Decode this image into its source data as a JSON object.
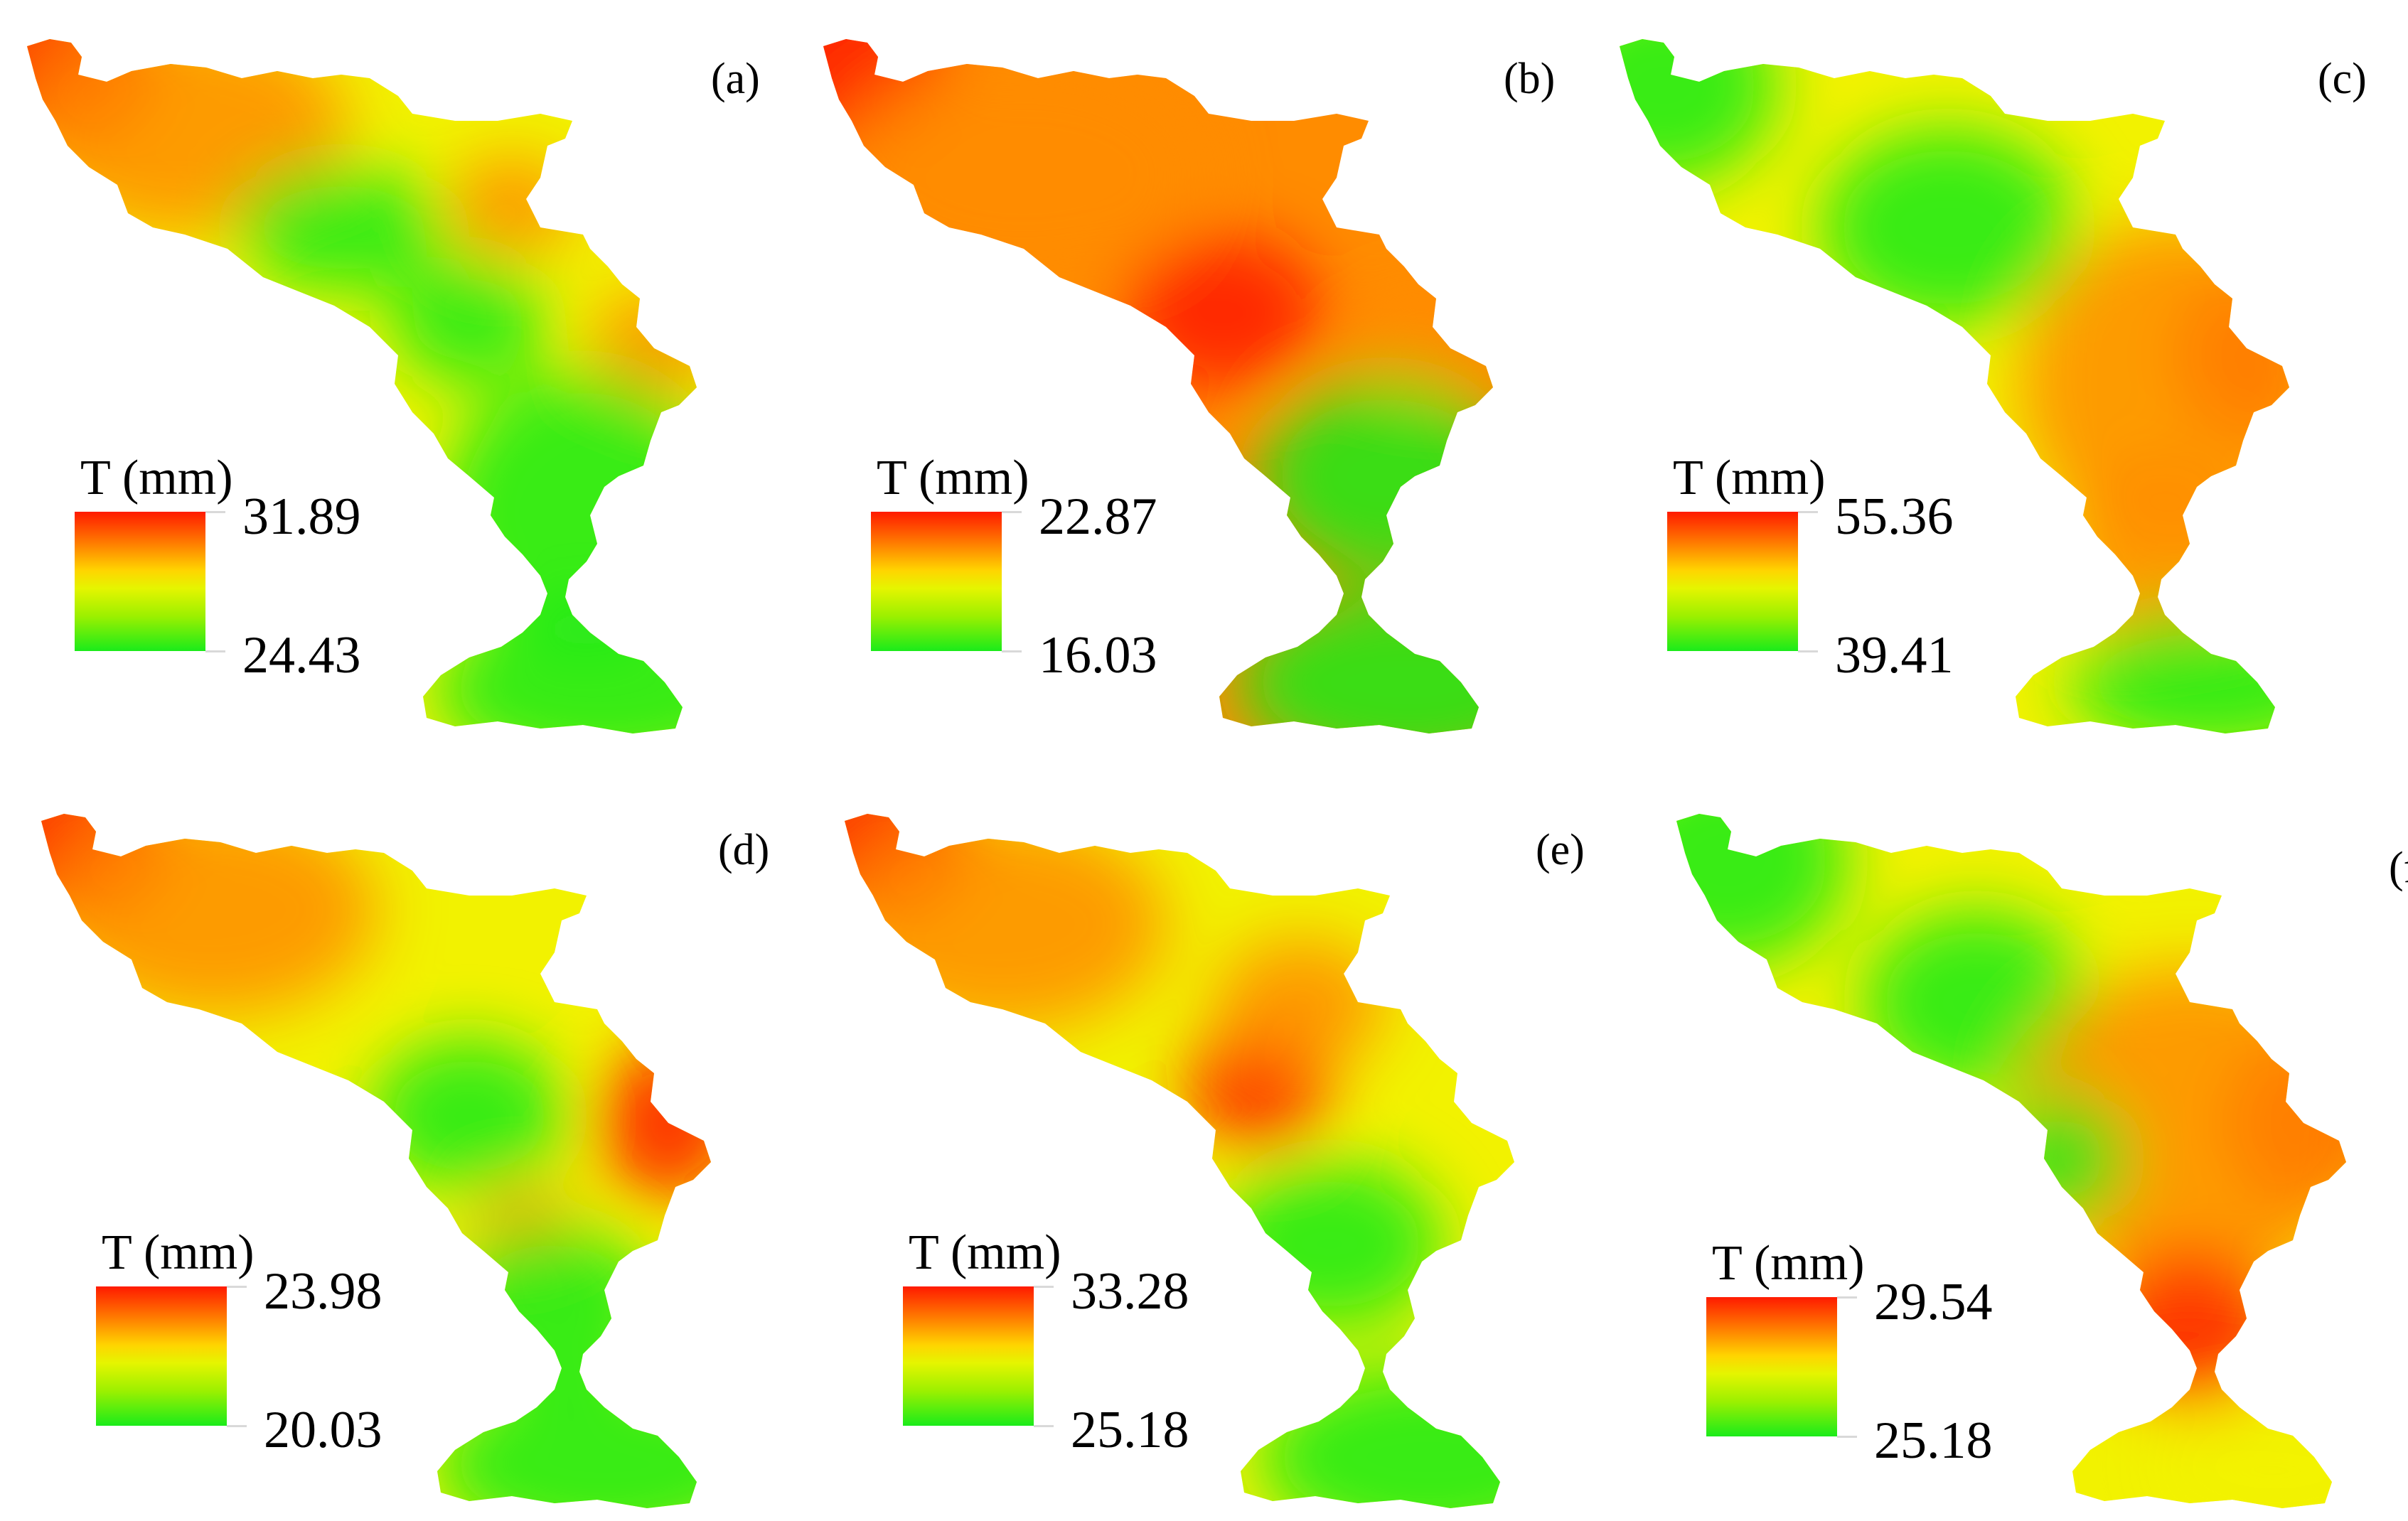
{
  "legend_title": "T (mm)",
  "colors": {
    "high": "#ff1a00",
    "mid_high": "#ff8c00",
    "mid": "#f2f200",
    "low": "#1aeb1a"
  },
  "panels": [
    {
      "label": "(a)",
      "max": "31.89",
      "min": "24.43"
    },
    {
      "label": "(b)",
      "max": "22.87",
      "min": "16.03"
    },
    {
      "label": "(c)",
      "max": "55.36",
      "min": "39.41"
    },
    {
      "label": "(d)",
      "max": "23.98",
      "min": "20.03"
    },
    {
      "label": "(e)",
      "max": "33.28",
      "min": "25.18"
    },
    {
      "label": "(f)",
      "max": "29.54",
      "min": "25.18"
    }
  ]
}
